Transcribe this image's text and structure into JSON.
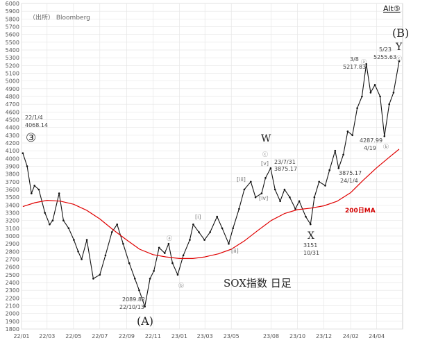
{
  "chart_data": {
    "type": "line",
    "title": "SOX指数 日足",
    "source": "（出所） Bloomberg",
    "alt_label": "Alt⑤",
    "ylim": [
      1800,
      6000
    ],
    "y_ticks": [
      "6000",
      "5900",
      "5800",
      "5700",
      "5600",
      "5500",
      "5400",
      "5300",
      "5200",
      "5100",
      "5000",
      "4900",
      "4800",
      "4700",
      "4600",
      "4500",
      "4400",
      "4300",
      "4200",
      "4100",
      "4000",
      "3900",
      "3800",
      "3700",
      "3600",
      "3500",
      "3400",
      "3300",
      "3200",
      "3100",
      "3000",
      "2900",
      "2800",
      "2700",
      "2600",
      "2500",
      "2400",
      "2300",
      "2200",
      "2100",
      "2000",
      "1900",
      "1800"
    ],
    "x_ticks": [
      "22/01",
      "22/03",
      "22/05",
      "22/07",
      "22/09",
      "22/11",
      "23/01",
      "23/03",
      "23/05",
      "23/08",
      "23/10",
      "23/12",
      "24/02",
      "24/04"
    ],
    "grid": true,
    "series": [
      {
        "name": "SOX index (daily)",
        "color": "#111111",
        "points": [
          [
            "22/01/04",
            4068
          ],
          [
            "22/01/14",
            3900
          ],
          [
            "22/01/24",
            3550
          ],
          [
            "22/01/31",
            3650
          ],
          [
            "22/02/10",
            3600
          ],
          [
            "22/02/24",
            3300
          ],
          [
            "22/03/07",
            3150
          ],
          [
            "22/03/14",
            3200
          ],
          [
            "22/03/29",
            3550
          ],
          [
            "22/04/08",
            3200
          ],
          [
            "22/04/20",
            3100
          ],
          [
            "22/05/02",
            2950
          ],
          [
            "22/05/12",
            2800
          ],
          [
            "22/05/20",
            2700
          ],
          [
            "22/06/01",
            2950
          ],
          [
            "22/06/16",
            2450
          ],
          [
            "22/07/01",
            2500
          ],
          [
            "22/07/14",
            2750
          ],
          [
            "22/07/29",
            3050
          ],
          [
            "22/08/10",
            3150
          ],
          [
            "22/08/24",
            2900
          ],
          [
            "22/09/07",
            2650
          ],
          [
            "22/09/20",
            2450
          ],
          [
            "22/09/30",
            2300
          ],
          [
            "22/10/13",
            2090
          ],
          [
            "22/10/25",
            2450
          ],
          [
            "22/11/03",
            2550
          ],
          [
            "22/11/15",
            2850
          ],
          [
            "22/11/28",
            2780
          ],
          [
            "22/12/07",
            2900
          ],
          [
            "22/12/16",
            2650
          ],
          [
            "22/12/28",
            2500
          ],
          [
            "23/01/10",
            2750
          ],
          [
            "23/01/25",
            2950
          ],
          [
            "23/02/02",
            3150
          ],
          [
            "23/02/15",
            3050
          ],
          [
            "23/02/28",
            2950
          ],
          [
            "23/03/13",
            3050
          ],
          [
            "23/03/29",
            3250
          ],
          [
            "23/04/10",
            3100
          ],
          [
            "23/04/25",
            2900
          ],
          [
            "23/05/05",
            3100
          ],
          [
            "23/05/19",
            3350
          ],
          [
            "23/05/31",
            3600
          ],
          [
            "23/06/15",
            3700
          ],
          [
            "23/06/26",
            3500
          ],
          [
            "23/07/10",
            3550
          ],
          [
            "23/07/19",
            3750
          ],
          [
            "23/07/31",
            3875
          ],
          [
            "23/08/10",
            3600
          ],
          [
            "23/08/22",
            3450
          ],
          [
            "23/09/01",
            3600
          ],
          [
            "23/09/13",
            3500
          ],
          [
            "23/09/26",
            3350
          ],
          [
            "23/10/05",
            3450
          ],
          [
            "23/10/20",
            3250
          ],
          [
            "23/10/31",
            3151
          ],
          [
            "23/11/09",
            3500
          ],
          [
            "23/11/20",
            3700
          ],
          [
            "23/12/04",
            3650
          ],
          [
            "23/12/14",
            3850
          ],
          [
            "23/12/27",
            4100
          ],
          [
            "24/01/04",
            3875
          ],
          [
            "24/01/15",
            4050
          ],
          [
            "24/01/25",
            4350
          ],
          [
            "24/02/05",
            4300
          ],
          [
            "24/02/16",
            4650
          ],
          [
            "24/02/27",
            4800
          ],
          [
            "24/03/08",
            5218
          ],
          [
            "24/03/18",
            4850
          ],
          [
            "24/03/28",
            4950
          ],
          [
            "24/04/09",
            4800
          ],
          [
            "24/04/19",
            4288
          ],
          [
            "24/04/30",
            4700
          ],
          [
            "24/05/10",
            4850
          ],
          [
            "24/05/23",
            5256
          ]
        ]
      },
      {
        "name": "200日MA",
        "color": "#e00000",
        "points": [
          [
            "22/01/04",
            3380
          ],
          [
            "22/02/01",
            3430
          ],
          [
            "22/03/01",
            3460
          ],
          [
            "22/04/01",
            3450
          ],
          [
            "22/05/01",
            3410
          ],
          [
            "22/06/01",
            3330
          ],
          [
            "22/07/01",
            3220
          ],
          [
            "22/08/01",
            3080
          ],
          [
            "22/09/01",
            2950
          ],
          [
            "22/10/01",
            2830
          ],
          [
            "22/11/01",
            2760
          ],
          [
            "22/12/01",
            2730
          ],
          [
            "23/01/01",
            2710
          ],
          [
            "23/02/01",
            2710
          ],
          [
            "23/03/01",
            2730
          ],
          [
            "23/04/01",
            2770
          ],
          [
            "23/05/01",
            2830
          ],
          [
            "23/06/01",
            2940
          ],
          [
            "23/07/01",
            3070
          ],
          [
            "23/08/01",
            3200
          ],
          [
            "23/09/01",
            3290
          ],
          [
            "23/10/01",
            3340
          ],
          [
            "23/11/01",
            3360
          ],
          [
            "23/12/01",
            3390
          ],
          [
            "24/01/01",
            3450
          ],
          [
            "24/02/01",
            3560
          ],
          [
            "24/03/01",
            3720
          ],
          [
            "24/04/01",
            3880
          ],
          [
            "24/05/01",
            4020
          ],
          [
            "24/05/23",
            4120
          ]
        ]
      }
    ],
    "annotations": {
      "ma_label": "200日MA",
      "wave_3": "③",
      "wave_A": "(A)",
      "wave_B": "(B)",
      "wave_W": "W",
      "wave_X": "X",
      "wave_Y": "Y",
      "circle_a": "ⓐ",
      "circle_b": "ⓑ",
      "circle_c": "ⓒ",
      "roman_i": "[i]",
      "roman_ii": "[ii]",
      "roman_iii": "[iii]",
      "roman_iv": "[iv]",
      "roman_v": "[v]",
      "peak_2201_date": "22/1/4",
      "peak_2201_value": "4068.14",
      "low_2210_value": "2089.82",
      "low_2210_date": "22/10/13",
      "w_date": "23/7/31",
      "w_value": "3875.17",
      "x_value": "3151",
      "x_date": "10/31",
      "a_2403_date": "3/8",
      "a_2403_value": "5217.83",
      "y_2405_date": "5/23",
      "y_2405_value": "5255.63",
      "b_2404_value": "4287.99",
      "b_2404_date": "4/19",
      "dip_2401_value": "3875.17",
      "dip_2401_date": "24/1/4"
    }
  }
}
